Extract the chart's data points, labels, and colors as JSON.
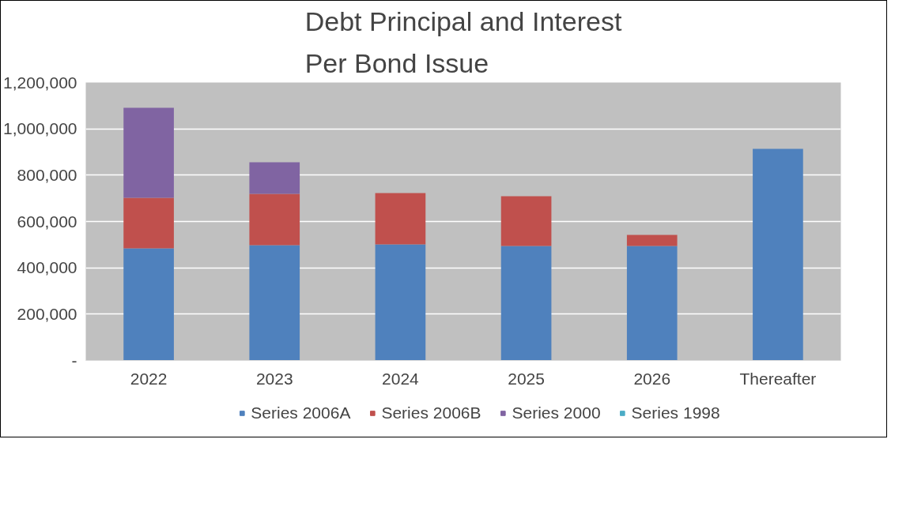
{
  "chart_data": {
    "type": "bar",
    "title": "Debt Principal and Interest\nPer Bond Issue",
    "stacked": true,
    "categories": [
      "2022",
      "2023",
      "2024",
      "2025",
      "2026",
      "Thereafter"
    ],
    "series": [
      {
        "name": "Series 2006A",
        "color": "#4f81bd",
        "values": [
          484000,
          498000,
          501000,
          494000,
          494000,
          914000
        ]
      },
      {
        "name": "Series 2006B",
        "color": "#c0504d",
        "values": [
          218000,
          221000,
          222000,
          215000,
          48000,
          null
        ]
      },
      {
        "name": "Series 2000",
        "color": "#8064a2",
        "values": [
          389000,
          137000,
          null,
          null,
          null,
          null
        ]
      },
      {
        "name": "Series 1998",
        "color": "#4bacc6",
        "values": [
          null,
          null,
          null,
          null,
          null,
          null
        ]
      }
    ],
    "ylim": [
      0,
      1200000
    ],
    "yticks": [
      {
        "value": 0,
        "label": "-"
      },
      {
        "value": 200000,
        "label": "200,000"
      },
      {
        "value": 400000,
        "label": "400,000"
      },
      {
        "value": 600000,
        "label": "600,000"
      },
      {
        "value": 800000,
        "label": "800,000"
      },
      {
        "value": 1000000,
        "label": "1,000,000"
      },
      {
        "value": 1200000,
        "label": "1,200,000"
      }
    ],
    "grid": "y",
    "legend": "bottom"
  }
}
